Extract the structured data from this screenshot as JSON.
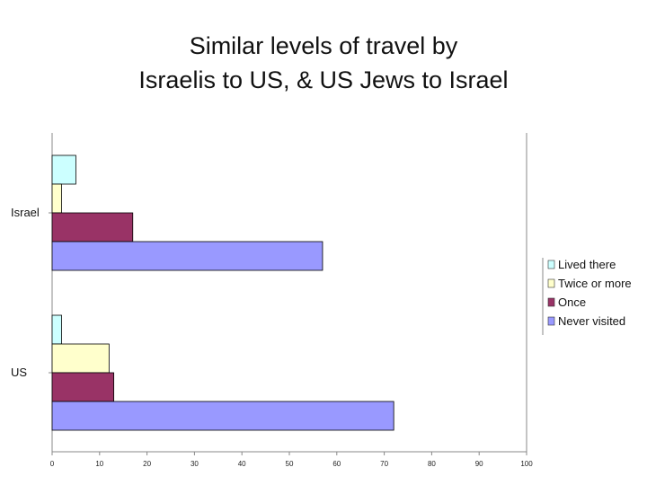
{
  "chart_data": {
    "type": "bar",
    "orientation": "horizontal",
    "title": "Similar levels of travel by Israelis to US, & US Jews to Israel",
    "title_lines": [
      "Similar levels of travel by",
      "Israelis to US, & US Jews to Israel"
    ],
    "categories": [
      "Israel",
      "US"
    ],
    "series": [
      {
        "name": "Lived there",
        "color": "#ccffff",
        "values": [
          5,
          2
        ]
      },
      {
        "name": "Twice or more",
        "color": "#ffffcc",
        "values": [
          2,
          12
        ]
      },
      {
        "name": "Once",
        "color": "#993366",
        "values": [
          17,
          13
        ]
      },
      {
        "name": "Never visited",
        "color": "#9999ff",
        "values": [
          57,
          72
        ]
      }
    ],
    "xlim": [
      0,
      100
    ],
    "xticks": [
      0,
      10,
      20,
      30,
      40,
      50,
      60,
      70,
      80,
      90,
      100
    ],
    "grid": false,
    "legend_position": "right"
  }
}
